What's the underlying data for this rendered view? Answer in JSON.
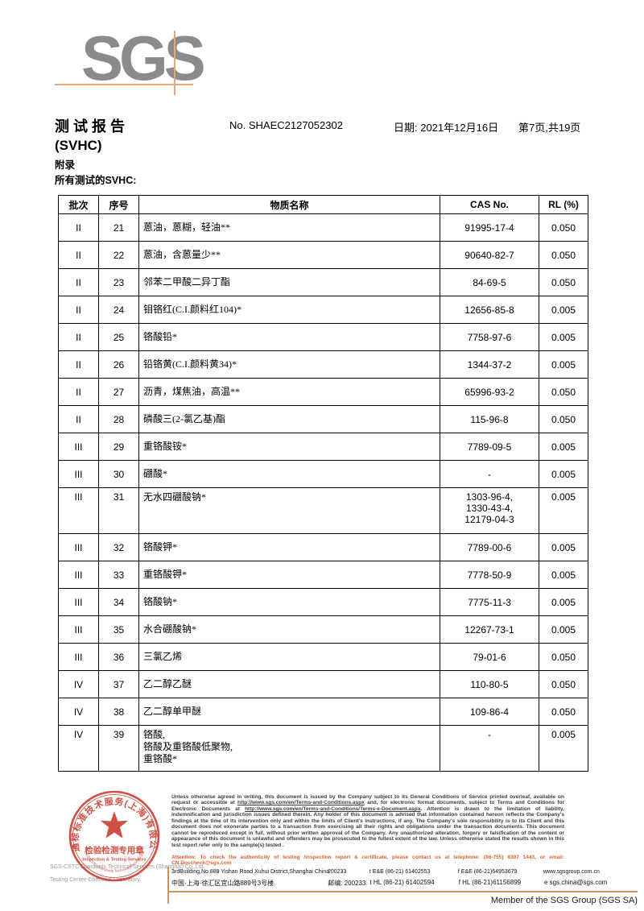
{
  "logo": {
    "text": "SGS"
  },
  "header": {
    "title_line1": "测试报告",
    "title_line2": "(SVHC)",
    "report_no": "No. SHAEC2127052302",
    "date": "日期: 2021年12月16日",
    "page": "第7页,共19页",
    "appendix": "附录",
    "subtitle": "所有测试的SVHC:"
  },
  "table": {
    "headers": [
      "批次",
      "序号",
      "物质名称",
      "CAS No.",
      "RL (%)"
    ],
    "rows": [
      {
        "batch": "II",
        "no": "21",
        "name": "蒽油，蒽糊，轻油**",
        "cas": "91995-17-4",
        "rl": "0.050"
      },
      {
        "batch": "II",
        "no": "22",
        "name": "蒽油，含蒽量少**",
        "cas": "90640-82-7",
        "rl": "0.050"
      },
      {
        "batch": "II",
        "no": "23",
        "name": "邻苯二甲酸二异丁酯",
        "cas": "84-69-5",
        "rl": "0.050"
      },
      {
        "batch": "II",
        "no": "24",
        "name": "钼铬红(C.I.颜料红104)*",
        "cas": "12656-85-8",
        "rl": "0.005"
      },
      {
        "batch": "II",
        "no": "25",
        "name": "铬酸铅*",
        "cas": "7758-97-6",
        "rl": "0.005"
      },
      {
        "batch": "II",
        "no": "26",
        "name": "铅铬黄(C.I.颜料黄34)*",
        "cas": "1344-37-2",
        "rl": "0.005"
      },
      {
        "batch": "II",
        "no": "27",
        "name": "沥青，煤焦油，高温**",
        "cas": "65996-93-2",
        "rl": "0.050"
      },
      {
        "batch": "II",
        "no": "28",
        "name": "磷酸三(2-氯乙基)酯",
        "cas": "115-96-8",
        "rl": "0.050"
      },
      {
        "batch": "III",
        "no": "29",
        "name": "重铬酸铵*",
        "cas": "7789-09-5",
        "rl": "0.005"
      },
      {
        "batch": "III",
        "no": "30",
        "name": "硼酸*",
        "cas": "-",
        "rl": "0.005"
      },
      {
        "batch": "III",
        "no": "31",
        "name": "无水四硼酸钠*",
        "cas": "1303-96-4,\n1330-43-4,\n12179-04-3",
        "rl": "0.005"
      },
      {
        "batch": "III",
        "no": "32",
        "name": "铬酸钾*",
        "cas": "7789-00-6",
        "rl": "0.005"
      },
      {
        "batch": "III",
        "no": "33",
        "name": "重铬酸钾*",
        "cas": "7778-50-9",
        "rl": "0.005"
      },
      {
        "batch": "III",
        "no": "34",
        "name": "铬酸钠*",
        "cas": "7775-11-3",
        "rl": "0.005"
      },
      {
        "batch": "III",
        "no": "35",
        "name": "水合硼酸钠*",
        "cas": "12267-73-1",
        "rl": "0.005"
      },
      {
        "batch": "III",
        "no": "36",
        "name": "三氯乙烯",
        "cas": "79-01-6",
        "rl": "0.050"
      },
      {
        "batch": "IV",
        "no": "37",
        "name": "乙二醇乙醚",
        "cas": "110-80-5",
        "rl": "0.050"
      },
      {
        "batch": "IV",
        "no": "38",
        "name": "乙二醇单甲醚",
        "cas": "109-86-4",
        "rl": "0.050"
      },
      {
        "batch": "IV",
        "no": "39",
        "name": "铬酸,\n铬酸及重铬酸低聚物,\n重铬酸*",
        "cas": "-",
        "rl": "0.005"
      }
    ]
  },
  "stamp": {
    "ring_text": "通标标准技术服务(上海)有限公司",
    "arc_text": "SGS-CSTC Standards Technical Services(Shanghai)Co.,Ltd.",
    "line1": "检验检测专用章",
    "line2": "Inspection & Testing Services",
    "color": "#c9382b"
  },
  "company": {
    "line1": "SGS-CSTC Standards Technical Services (Shanghai) Co.,Ltd.",
    "line2": "Testing Center-Chemical Laboratory."
  },
  "disclaimer": {
    "part1": "Unless otherwise agreed in writing, this document is issued by the Company subject to its General Conditions of Service printed overleaf, available on request or accessible at ",
    "link1": "http://www.sgs.com/en/Terms-and-Conditions.aspx",
    "part2": " and, for electronic format documents, subject to Terms and Conditions for Electronic Documents at ",
    "link2": "http://www.sgs.com/en/Terms-and-Conditions/Terms-e-Document.aspx",
    "part3": ". Attention is drawn to the limitation of liability, indemnification and jurisdiction issues defined therein. Any holder of this document is advised that information contained hereon reflects the Company's findings at the time of its intervention only and within the limits of Client's instructions, if any. The Company's sole responsibility is to its Client and this document does not exonerate parties to a transaction from exercising all their rights and obligations under the transaction documents. This document cannot be reproduced except in full, without prior written approval of the Company. Any unauthorized alteration, forgery or falsification of the content or appearance of this document is unlawful and offenders may be prosecuted to the fullest extent of the law. Unless otherwise stated the results shown in this test report refer only to the sample(s) tested .",
    "attention": "Attention: To check the authenticity of testing /inspection report & certificate, please contact us at telephone: (86-755) 8307 1443, or email: CN.Doccheck@sgs.com"
  },
  "address": {
    "en_addr": "3rdBuilding,No.889 Yishan Road Xuhui District,Shanghai China",
    "en_postal": "200233",
    "en_tel": "t E&E (86-21) 61402553",
    "en_fax": "f E&E (86-21)64953679",
    "en_web": "www.sgsgroup.com.cn",
    "cn_addr": "中国·上海·徐汇区宜山路889号3号楼",
    "cn_postal": "邮编: 200233",
    "cn_tel": "t HL (86-21) 61402594",
    "cn_fax": "f HL (86-21)61156899",
    "cn_email": "e  sgs.china@sgs.com"
  },
  "footer": {
    "member": "Member of the SGS Group (SGS SA)"
  }
}
